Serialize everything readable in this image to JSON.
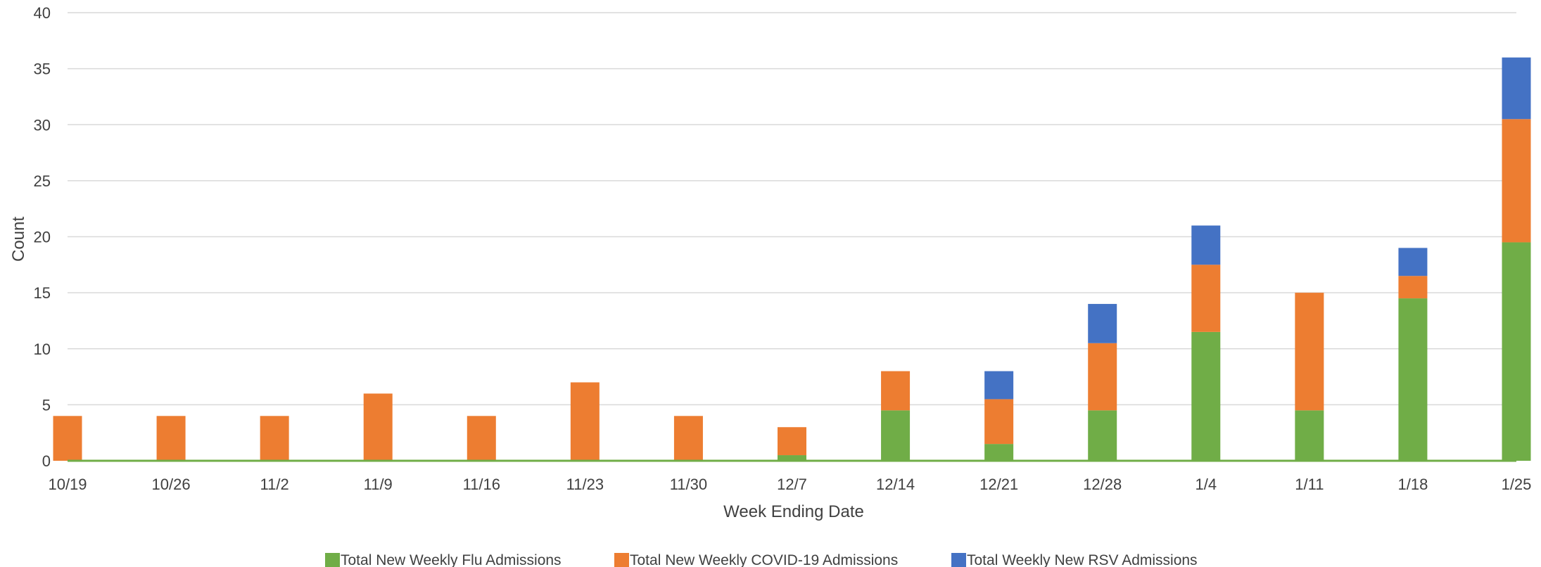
{
  "chart_data": {
    "type": "bar",
    "stacked": true,
    "xlabel": "Week Ending Date",
    "ylabel": "Count",
    "ylim": [
      0,
      40
    ],
    "yticks": [
      0,
      5,
      10,
      15,
      20,
      25,
      30,
      35,
      40
    ],
    "grid": true,
    "legend_position": "bottom",
    "categories": [
      "10/19",
      "10/26",
      "11/2",
      "11/9",
      "11/16",
      "11/23",
      "11/30",
      "12/7",
      "12/14",
      "12/21",
      "12/28",
      "1/4",
      "1/11",
      "1/18",
      "1/25"
    ],
    "series": [
      {
        "name": "Total New Weekly Flu Admissions",
        "color": "#70AD47",
        "values": [
          0,
          0,
          0,
          0,
          0,
          0,
          0,
          0.5,
          4.5,
          1.5,
          4.5,
          11.5,
          4.5,
          14.5,
          19.5
        ]
      },
      {
        "name": "Total New Weekly COVID-19 Admissions",
        "color": "#ED7D31",
        "values": [
          4,
          4,
          4,
          6,
          4,
          7,
          4,
          2.5,
          3.5,
          4,
          6,
          6,
          10.5,
          2,
          11
        ]
      },
      {
        "name": "Total Weekly New RSV Admissions",
        "color": "#4472C4",
        "values": [
          0,
          0,
          0,
          0,
          0,
          0,
          0,
          0,
          0,
          2.5,
          3.5,
          3.5,
          0,
          2.5,
          5.5
        ]
      }
    ]
  }
}
